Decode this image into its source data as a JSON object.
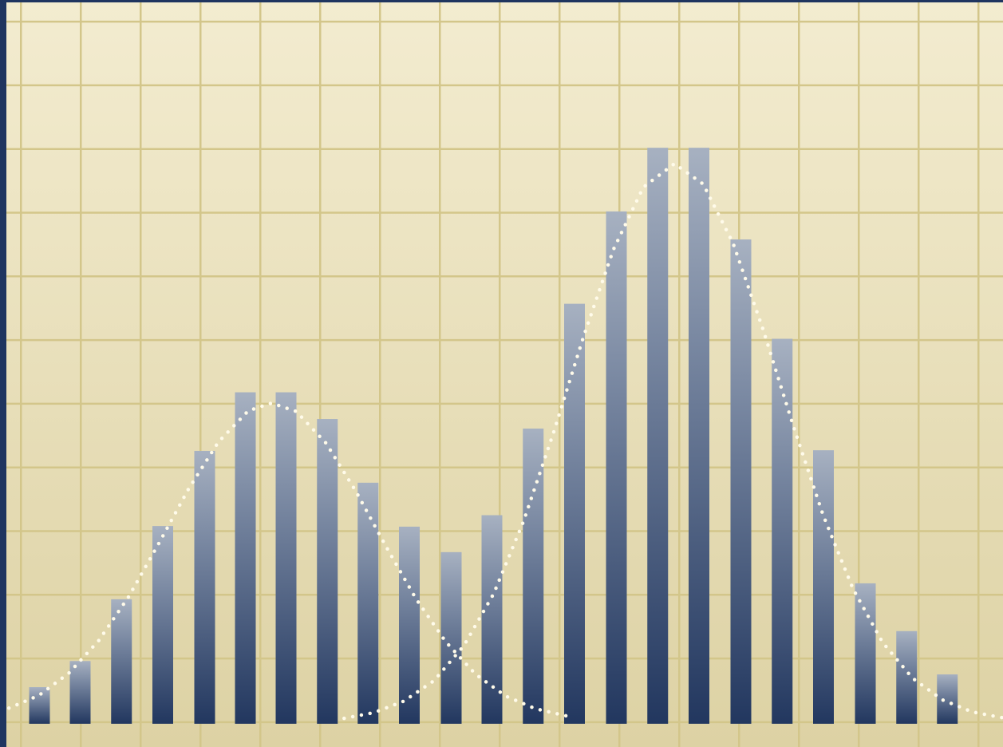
{
  "chart_data": {
    "type": "bar",
    "x": [
      0.31,
      0.99,
      1.68,
      2.37,
      3.07,
      3.75,
      4.43,
      5.12,
      5.8,
      6.49,
      7.19,
      7.87,
      8.56,
      9.25,
      9.95,
      10.64,
      11.33,
      12.03,
      12.72,
      13.41,
      14.11,
      14.8,
      15.48
    ],
    "values": [
      0.55,
      0.96,
      1.93,
      3.08,
      4.26,
      5.18,
      5.18,
      4.76,
      3.76,
      3.07,
      2.67,
      3.25,
      4.61,
      6.57,
      8.02,
      9.02,
      9.02,
      7.58,
      6.02,
      4.27,
      2.18,
      1.43,
      0.75
    ],
    "color": "#22375f",
    "xlim": [
      -0.35,
      16.41
    ],
    "ylim": [
      -0.39,
      11.34
    ],
    "xticks": [
      0,
      1,
      2,
      3,
      4,
      5,
      6,
      7,
      8,
      9,
      10,
      11,
      12,
      13,
      14,
      15,
      16
    ],
    "yticks": [
      0,
      1,
      2,
      3,
      4,
      5,
      6,
      7,
      8,
      9,
      10,
      11
    ],
    "grid": true,
    "lines": [
      {
        "x": [
          -0.2,
          0.3,
          0.8,
          1.3,
          1.8,
          2.3,
          2.8,
          3.3,
          3.8,
          4.19,
          4.6,
          5.1,
          5.6,
          6.1,
          6.6,
          7.1,
          7.6,
          8.1,
          8.6,
          9.2
        ],
        "values": [
          0.22,
          0.42,
          0.77,
          1.28,
          1.97,
          2.8,
          3.66,
          4.4,
          4.89,
          5.01,
          4.88,
          4.38,
          3.62,
          2.76,
          1.94,
          1.26,
          0.75,
          0.41,
          0.21,
          0.08
        ],
        "color": "#fffbea",
        "dash": "dotted"
      },
      {
        "x": [
          5.4,
          5.9,
          6.4,
          6.9,
          7.4,
          7.9,
          8.4,
          8.9,
          9.4,
          9.9,
          10.4,
          10.92,
          11.4,
          11.9,
          12.4,
          12.9,
          13.4,
          13.9,
          14.4,
          14.9,
          15.4,
          15.9,
          16.4
        ],
        "values": [
          0.06,
          0.15,
          0.33,
          0.65,
          1.2,
          2.02,
          3.16,
          4.55,
          6.05,
          7.42,
          8.4,
          8.77,
          8.45,
          7.52,
          6.17,
          4.67,
          3.26,
          2.1,
          1.25,
          0.69,
          0.35,
          0.16,
          0.07
        ],
        "color": "#fffbea",
        "dash": "dotted"
      }
    ]
  }
}
